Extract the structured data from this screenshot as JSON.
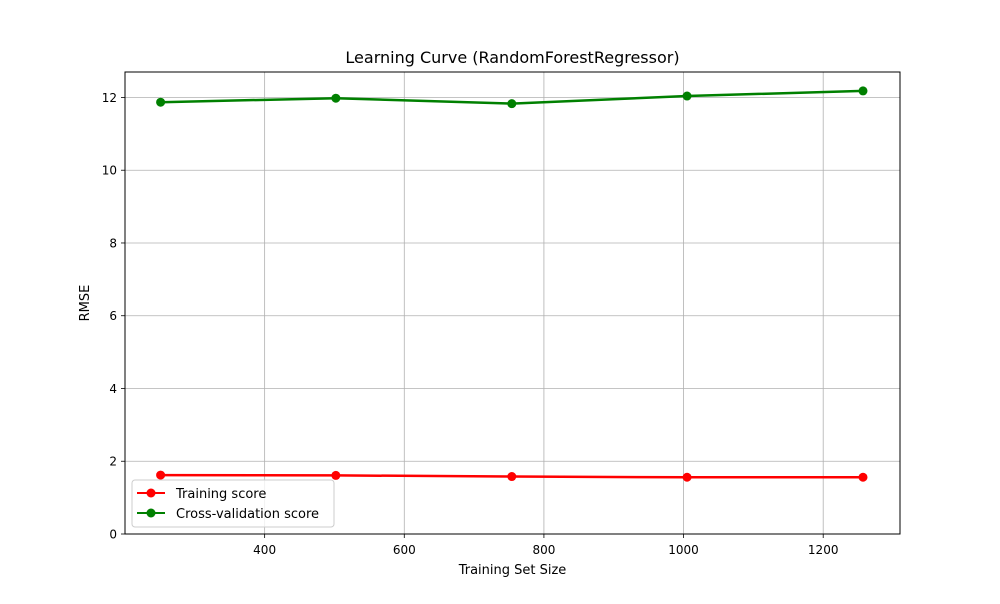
{
  "chart_data": {
    "type": "line",
    "title": "Learning Curve (RandomForestRegressor)",
    "xlabel": "Training Set Size",
    "ylabel": "RMSE",
    "xlim": [
      200,
      1310
    ],
    "ylim": [
      0,
      12.7
    ],
    "x": [
      251,
      502,
      754,
      1005,
      1257
    ],
    "xticks": [
      400,
      600,
      800,
      1000,
      1200
    ],
    "yticks": [
      0,
      2,
      4,
      6,
      8,
      10,
      12
    ],
    "grid": true,
    "legend": "lower-left",
    "series": [
      {
        "name": "Training score",
        "color": "#ff0000",
        "marker": "circle",
        "values": [
          1.62,
          1.61,
          1.58,
          1.56,
          1.56
        ]
      },
      {
        "name": "Cross-validation score",
        "color": "#008000",
        "marker": "circle",
        "values": [
          11.87,
          11.98,
          11.83,
          12.04,
          12.18
        ]
      }
    ]
  }
}
